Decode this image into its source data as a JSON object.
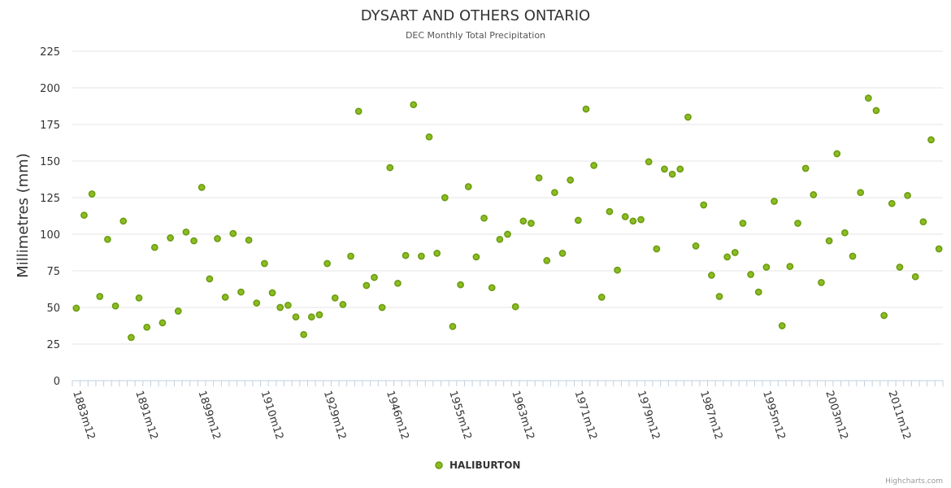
{
  "chart_data": {
    "type": "scatter",
    "title": "DYSART AND OTHERS ONTARIO",
    "subtitle": "DEC Monthly Total Precipitation",
    "xlabel": "",
    "ylabel": "Millimetres (mm)",
    "ylim": [
      0,
      225
    ],
    "yticks": [
      "0",
      "25",
      "50",
      "75",
      "100",
      "125",
      "150",
      "175",
      "200",
      "225"
    ],
    "xtick_labels": [
      "1883m12",
      "1891m12",
      "1899m12",
      "1910m12",
      "1929m12",
      "1946m12",
      "1955m12",
      "1963m12",
      "1971m12",
      "1979m12",
      "1987m12",
      "1995m12",
      "2003m12",
      "2011m12"
    ],
    "xtick_interval": 8,
    "grid": true,
    "legend_position": "bottom-center",
    "series": [
      {
        "name": "HALIBURTON",
        "values": [
          49.5,
          113,
          127.5,
          57.5,
          96.5,
          51,
          109,
          29.5,
          56.5,
          36.5,
          91,
          39.5,
          97.5,
          47.5,
          101.5,
          95.5,
          132,
          69.5,
          97,
          57,
          100.5,
          60.5,
          96,
          53,
          80,
          60,
          50,
          51.5,
          43.5,
          31.5,
          43.5,
          45,
          80,
          56.5,
          52,
          85,
          184,
          65,
          70.5,
          50,
          145.5,
          66.5,
          85.5,
          188.5,
          85,
          166.5,
          87,
          125,
          37,
          65.5,
          132.5,
          84.5,
          111,
          63.5,
          96.5,
          100,
          50.5,
          109,
          107.5,
          138.5,
          82,
          128.5,
          87,
          137,
          109.5,
          185.5,
          147,
          57,
          115.5,
          75.5,
          112,
          109,
          110,
          149.5,
          90,
          144.5,
          141,
          144.5,
          180,
          92,
          120,
          72,
          57.5,
          84.5,
          87.5,
          107.5,
          72.5,
          60.5,
          77.5,
          122.5,
          37.5,
          78,
          107.5,
          145,
          127,
          67,
          95.5,
          155,
          101,
          85,
          128.5,
          193,
          184.5,
          44.5,
          121,
          77.5,
          126.5,
          71,
          108.5,
          164.5,
          90
        ]
      }
    ]
  },
  "credits": "Highcharts.com",
  "colors": {
    "point_fill": "#8bbc21",
    "point_stroke": "#6a9a10",
    "grid": "#e6e6e6",
    "axis": "#c0d0e0"
  }
}
